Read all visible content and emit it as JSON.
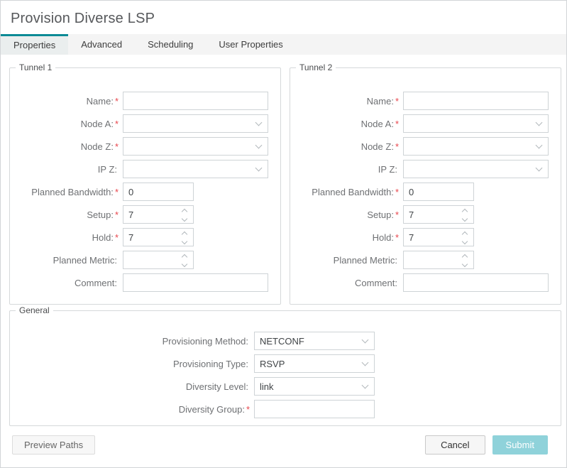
{
  "window": {
    "title": "Provision Diverse LSP"
  },
  "tabs": [
    {
      "label": "Properties",
      "active": true
    },
    {
      "label": "Advanced",
      "active": false
    },
    {
      "label": "Scheduling",
      "active": false
    },
    {
      "label": "User Properties",
      "active": false
    }
  ],
  "tunnels": [
    {
      "legend": "Tunnel 1",
      "fields": [
        {
          "label": "Name:",
          "req": "*",
          "value": ""
        },
        {
          "label": "Node A:",
          "req": "*",
          "value": ""
        },
        {
          "label": "Node Z:",
          "req": "*",
          "value": ""
        },
        {
          "label": "IP Z:",
          "req": "",
          "value": ""
        },
        {
          "label": "Planned Bandwidth:",
          "req": "*",
          "value": "0"
        },
        {
          "label": "Setup:",
          "req": "*",
          "value": "7"
        },
        {
          "label": "Hold:",
          "req": "*",
          "value": "7"
        },
        {
          "label": "Planned Metric:",
          "req": "",
          "value": ""
        },
        {
          "label": "Comment:",
          "req": "",
          "value": ""
        }
      ]
    },
    {
      "legend": "Tunnel 2",
      "fields": [
        {
          "label": "Name:",
          "req": "*",
          "value": ""
        },
        {
          "label": "Node A:",
          "req": "*",
          "value": ""
        },
        {
          "label": "Node Z:",
          "req": "*",
          "value": ""
        },
        {
          "label": "IP Z:",
          "req": "",
          "value": ""
        },
        {
          "label": "Planned Bandwidth:",
          "req": "*",
          "value": "0"
        },
        {
          "label": "Setup:",
          "req": "*",
          "value": "7"
        },
        {
          "label": "Hold:",
          "req": "*",
          "value": "7"
        },
        {
          "label": "Planned Metric:",
          "req": "",
          "value": ""
        },
        {
          "label": "Comment:",
          "req": "",
          "value": ""
        }
      ]
    }
  ],
  "general": {
    "legend": "General",
    "fields": [
      {
        "label": "Provisioning Method:",
        "req": "",
        "value": "NETCONF"
      },
      {
        "label": "Provisioning Type:",
        "req": "",
        "value": "RSVP"
      },
      {
        "label": "Diversity Level:",
        "req": "",
        "value": "link"
      },
      {
        "label": "Diversity Group:",
        "req": "*",
        "value": ""
      }
    ]
  },
  "footer": {
    "preview": "Preview Paths",
    "cancel": "Cancel",
    "submit": "Submit"
  },
  "colors": {
    "accent_teal": "#0c8a96",
    "submit_bg": "#8fd2da",
    "required_red": "#e8464d"
  }
}
